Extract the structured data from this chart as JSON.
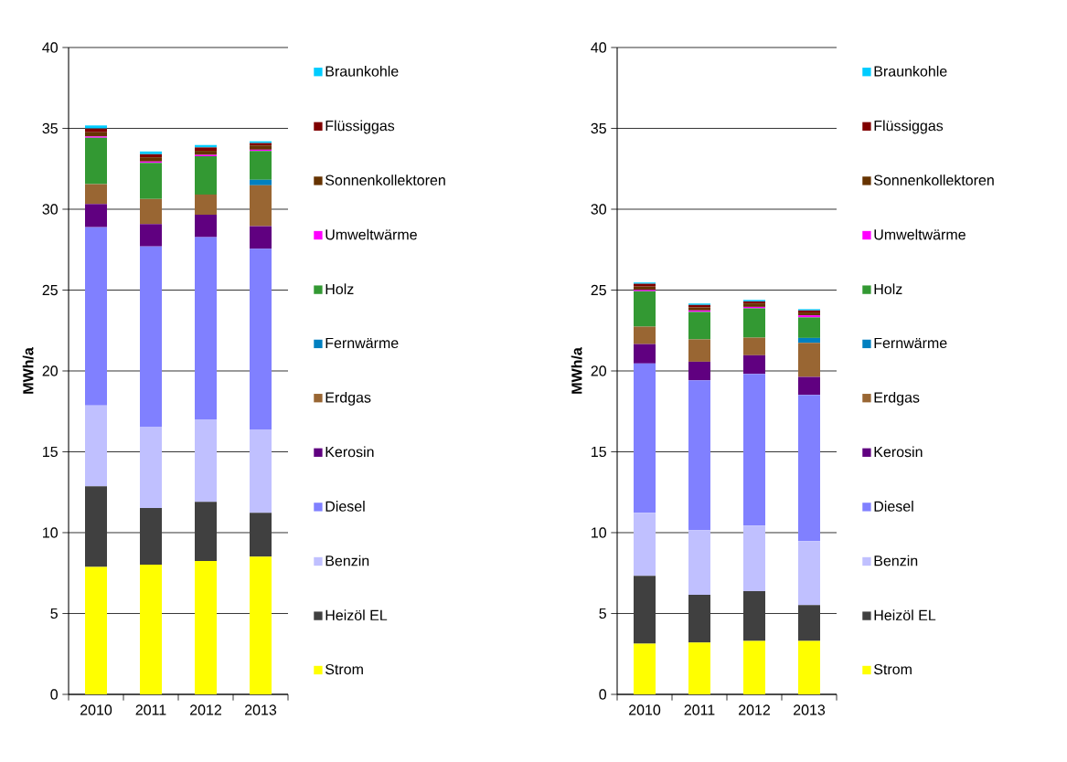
{
  "chart_data": [
    {
      "type": "bar",
      "stacked": true,
      "ylabel": "MWh/a",
      "categories": [
        "2010",
        "2011",
        "2012",
        "2013"
      ],
      "ylim": [
        0,
        40
      ],
      "yticks": [
        0,
        5,
        10,
        15,
        20,
        25,
        30,
        35,
        40
      ],
      "grid": "y",
      "legend": "right",
      "series": [
        {
          "name": "Strom",
          "color": "#ffff00",
          "values": [
            7.88,
            8.02,
            8.25,
            8.52
          ]
        },
        {
          "name": "Heizöl EL",
          "color": "#404040",
          "values": [
            4.99,
            3.51,
            3.66,
            2.71
          ]
        },
        {
          "name": "Benzin",
          "color": "#c0c0ff",
          "values": [
            4.99,
            5.02,
            5.1,
            5.15
          ]
        },
        {
          "name": "Diesel",
          "color": "#8080ff",
          "values": [
            11.03,
            11.15,
            11.26,
            11.17
          ]
        },
        {
          "name": "Kerosin",
          "color": "#600080",
          "values": [
            1.43,
            1.38,
            1.39,
            1.4
          ]
        },
        {
          "name": "Erdgas",
          "color": "#996633",
          "values": [
            1.23,
            1.55,
            1.25,
            2.53
          ]
        },
        {
          "name": "Fernwärme",
          "color": "#0080c0",
          "values": [
            0,
            0,
            0,
            0.34
          ]
        },
        {
          "name": "Holz",
          "color": "#339933",
          "values": [
            2.87,
            2.24,
            2.36,
            1.78
          ]
        },
        {
          "name": "Umweltwärme",
          "color": "#ff00ff",
          "values": [
            0.08,
            0.08,
            0.09,
            0.08
          ]
        },
        {
          "name": "Sonnenkollektoren",
          "color": "#663300",
          "values": [
            0.26,
            0.26,
            0.25,
            0.26
          ]
        },
        {
          "name": "Flüssiggas",
          "color": "#800000",
          "values": [
            0.23,
            0.19,
            0.21,
            0.15
          ]
        },
        {
          "name": "Braunkohle",
          "color": "#00ccff",
          "values": [
            0.19,
            0.17,
            0.15,
            0.11
          ]
        }
      ]
    },
    {
      "type": "bar",
      "stacked": true,
      "ylabel": "MWh/a",
      "categories": [
        "2010",
        "2011",
        "2012",
        "2013"
      ],
      "ylim": [
        0,
        40
      ],
      "yticks": [
        0,
        5,
        10,
        15,
        20,
        25,
        30,
        35,
        40
      ],
      "grid": "y",
      "legend": "right",
      "series": [
        {
          "name": "Strom",
          "color": "#ffff00",
          "values": [
            3.14,
            3.21,
            3.31,
            3.31
          ]
        },
        {
          "name": "Heizöl EL",
          "color": "#404040",
          "values": [
            4.19,
            2.95,
            3.07,
            2.21
          ]
        },
        {
          "name": "Benzin",
          "color": "#c0c0ff",
          "values": [
            3.9,
            4.0,
            4.06,
            3.96
          ]
        },
        {
          "name": "Diesel",
          "color": "#8080ff",
          "values": [
            9.23,
            9.26,
            9.38,
            9.04
          ]
        },
        {
          "name": "Kerosin",
          "color": "#600080",
          "values": [
            1.2,
            1.15,
            1.15,
            1.11
          ]
        },
        {
          "name": "Erdgas",
          "color": "#996633",
          "values": [
            1.08,
            1.38,
            1.09,
            2.11
          ]
        },
        {
          "name": "Fernwärme",
          "color": "#0080c0",
          "values": [
            0,
            0,
            0,
            0.3
          ]
        },
        {
          "name": "Holz",
          "color": "#339933",
          "values": [
            2.19,
            1.7,
            1.81,
            1.27
          ]
        },
        {
          "name": "Umweltwärme",
          "color": "#ff00ff",
          "values": [
            0.08,
            0.09,
            0.09,
            0.13
          ]
        },
        {
          "name": "Sonnenkollektoren",
          "color": "#663300",
          "values": [
            0.21,
            0.19,
            0.21,
            0.17
          ]
        },
        {
          "name": "Flüssiggas",
          "color": "#800000",
          "values": [
            0.17,
            0.15,
            0.13,
            0.13
          ]
        },
        {
          "name": "Braunkohle",
          "color": "#00ccff",
          "values": [
            0.08,
            0.09,
            0.09,
            0.08
          ]
        }
      ]
    }
  ]
}
